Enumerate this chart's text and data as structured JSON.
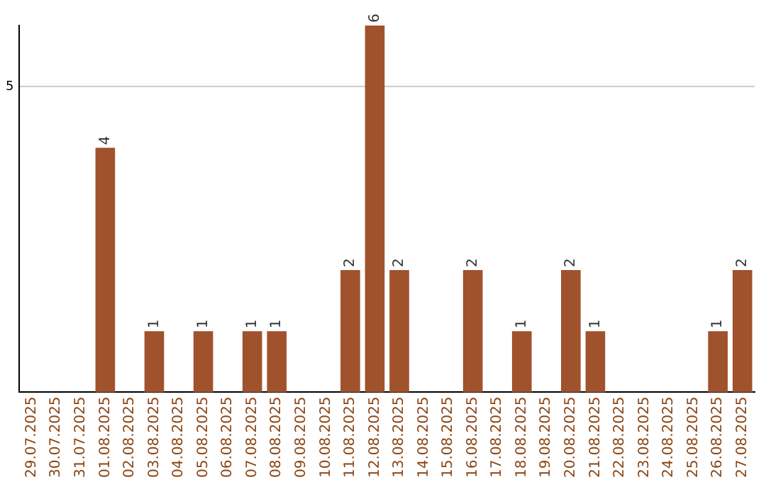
{
  "chart_data": {
    "type": "bar",
    "categories": [
      "29.07.2025",
      "30.07.2025",
      "31.07.2025",
      "01.08.2025",
      "02.08.2025",
      "03.08.2025",
      "04.08.2025",
      "05.08.2025",
      "06.08.2025",
      "07.08.2025",
      "08.08.2025",
      "09.08.2025",
      "10.08.2025",
      "11.08.2025",
      "12.08.2025",
      "13.08.2025",
      "14.08.2025",
      "15.08.2025",
      "16.08.2025",
      "17.08.2025",
      "18.08.2025",
      "19.08.2025",
      "20.08.2025",
      "21.08.2025",
      "22.08.2025",
      "23.08.2025",
      "24.08.2025",
      "25.08.2025",
      "26.08.2025",
      "27.08.2025"
    ],
    "values": [
      0,
      0,
      0,
      4,
      0,
      1,
      0,
      1,
      0,
      1,
      1,
      0,
      0,
      2,
      6,
      2,
      0,
      0,
      2,
      0,
      1,
      0,
      2,
      1,
      0,
      0,
      0,
      0,
      1,
      2
    ],
    "value_labels": [
      null,
      null,
      null,
      "4",
      null,
      "1",
      null,
      "1",
      null,
      "1",
      "1",
      null,
      null,
      "2",
      "6",
      "2",
      null,
      null,
      "2",
      null,
      "1",
      null,
      "2",
      "1",
      null,
      null,
      null,
      null,
      "1",
      "2"
    ],
    "color": "#a0522d",
    "ylim": [
      0,
      6
    ],
    "yticks": [
      5
    ],
    "grid": "y",
    "legend": false
  }
}
